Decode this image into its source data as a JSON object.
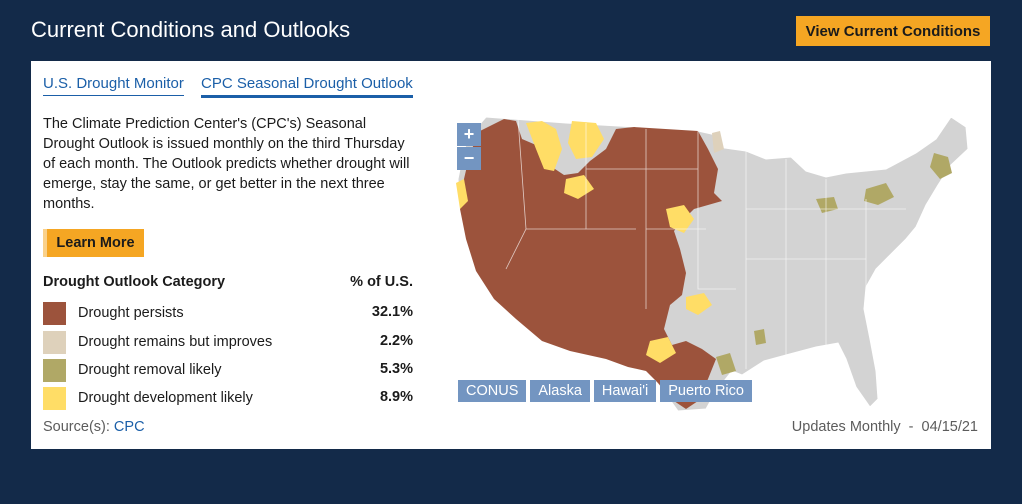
{
  "header": {
    "title": "Current Conditions and Outlooks",
    "view_button": "View Current Conditions"
  },
  "tabs": [
    "U.S. Drought Monitor",
    "CPC Seasonal Drought Outlook"
  ],
  "description": "The Climate Prediction Center's (CPC's) Seasonal Drought Outlook is issued monthly on the third Thursday of each month. The Outlook predicts whether drought will emerge, stay the same, or get better in the next three months.",
  "learn_more": "Learn More",
  "legend": {
    "header_label": "Drought Outlook Category",
    "header_pct": "% of U.S.",
    "items": [
      {
        "label": "Drought persists",
        "value": "32.1%",
        "color": "#9c533c"
      },
      {
        "label": "Drought remains but improves",
        "value": "2.2%",
        "color": "#ded1bb"
      },
      {
        "label": "Drought removal likely",
        "value": "5.3%",
        "color": "#b0a866"
      },
      {
        "label": "Drought development likely",
        "value": "8.9%",
        "color": "#ffdd66"
      }
    ]
  },
  "source": {
    "label": "Source(s):",
    "link": "CPC"
  },
  "updates": "Updates Monthly  -  04/15/21",
  "map": {
    "zoom_in": "+",
    "zoom_out": "−",
    "regions": [
      "CONUS",
      "Alaska",
      "Hawai'i",
      "Puerto Rico"
    ]
  }
}
